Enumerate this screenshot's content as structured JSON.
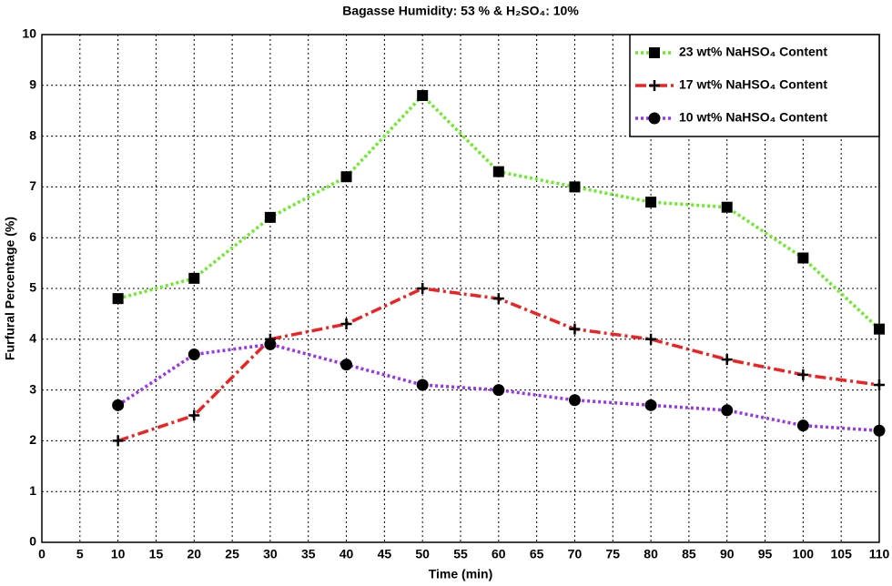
{
  "chart_data": {
    "type": "line",
    "title": "Bagasse Humidity: 53 % & H₂SO₄: 10%",
    "x_label": "Time (min)",
    "y_label": "Furfural Percentage (%)",
    "x": [
      10,
      20,
      30,
      40,
      50,
      60,
      70,
      80,
      90,
      100,
      110
    ],
    "series": [
      {
        "name": "23 wt% NaHSO₄ Content",
        "color": "#66ee22",
        "marker": "square",
        "linestyle": "dotted",
        "values": [
          4.8,
          5.2,
          6.4,
          7.2,
          8.8,
          7.3,
          7.0,
          6.7,
          6.6,
          5.6,
          4.2
        ]
      },
      {
        "name": "17 wt% NaHSO₄ Content",
        "color": "#ee2222",
        "marker": "plus",
        "linestyle": "dashdot",
        "values": [
          2.0,
          2.5,
          4.0,
          4.3,
          5.0,
          4.8,
          4.2,
          4.0,
          3.6,
          3.3,
          3.1
        ]
      },
      {
        "name": "10 wt% NaHSO₄ Content",
        "color": "#9933ee",
        "marker": "circle",
        "linestyle": "dotted",
        "values": [
          2.7,
          3.7,
          3.9,
          3.5,
          3.1,
          3.0,
          2.8,
          2.7,
          2.6,
          2.3,
          2.2
        ]
      }
    ],
    "xlim": [
      0,
      110
    ],
    "xticks": [
      0,
      5,
      10,
      15,
      20,
      25,
      30,
      35,
      40,
      45,
      50,
      55,
      60,
      65,
      70,
      75,
      80,
      85,
      90,
      95,
      100,
      105,
      110
    ],
    "ylim": [
      0,
      10
    ],
    "yticks": [
      0,
      1,
      2,
      3,
      4,
      5,
      6,
      7,
      8,
      9,
      10
    ],
    "grid": true,
    "legend": "upper right"
  }
}
